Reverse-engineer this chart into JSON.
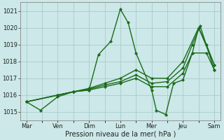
{
  "background_color": "#cce8e8",
  "grid_color": "#aacccc",
  "line_color": "#1a6b1a",
  "ylabel_text": "Pression niveau de la mer( hPa )",
  "ylim": [
    1014.5,
    1021.5
  ],
  "yticks": [
    1015,
    1016,
    1017,
    1018,
    1019,
    1020,
    1021
  ],
  "x_labels": [
    "Mar",
    "Ven",
    "Dim",
    "Lun",
    "Mer",
    "Jeu",
    "Sam"
  ],
  "x_positions": [
    0,
    1,
    2,
    3,
    4,
    5,
    6
  ],
  "series": [
    {
      "x": [
        0,
        0.45,
        1.0,
        1.5,
        2.0,
        2.3,
        2.7,
        3.0,
        3.25,
        3.5,
        4.0,
        4.15,
        4.45,
        4.7,
        5.0,
        5.3,
        5.5,
        5.75,
        6.0
      ],
      "y": [
        1015.6,
        1015.1,
        1015.9,
        1016.2,
        1016.3,
        1018.4,
        1019.2,
        1021.1,
        1020.3,
        1018.5,
        1016.3,
        1015.1,
        1014.85,
        1016.7,
        1016.9,
        1018.5,
        1020.0,
        1019.0,
        1017.8
      ]
    },
    {
      "x": [
        0,
        1.0,
        1.5,
        2.0,
        2.5,
        3.0,
        3.5,
        4.0,
        4.5,
        5.0,
        5.3,
        5.75,
        6.0
      ],
      "y": [
        1015.6,
        1016.0,
        1016.2,
        1016.3,
        1016.5,
        1016.7,
        1017.0,
        1016.5,
        1016.5,
        1017.3,
        1018.5,
        1018.5,
        1017.5
      ]
    },
    {
      "x": [
        0,
        1.0,
        1.5,
        2.0,
        2.5,
        3.0,
        3.5,
        4.0,
        4.5,
        5.0,
        5.3,
        5.55,
        6.0
      ],
      "y": [
        1015.6,
        1016.0,
        1016.2,
        1016.35,
        1016.6,
        1016.8,
        1017.2,
        1016.7,
        1016.8,
        1017.6,
        1019.0,
        1020.1,
        1017.5
      ]
    },
    {
      "x": [
        0,
        1.0,
        1.5,
        2.0,
        2.5,
        3.0,
        3.5,
        4.0,
        4.5,
        5.0,
        5.5,
        6.0
      ],
      "y": [
        1015.6,
        1016.0,
        1016.2,
        1016.4,
        1016.7,
        1017.0,
        1017.5,
        1017.0,
        1017.0,
        1018.0,
        1020.0,
        1017.8
      ]
    }
  ],
  "marker": "D",
  "marker_size": 2.2,
  "linewidth": 1.0,
  "axis_fontsize": 7.0,
  "tick_fontsize": 6.0
}
